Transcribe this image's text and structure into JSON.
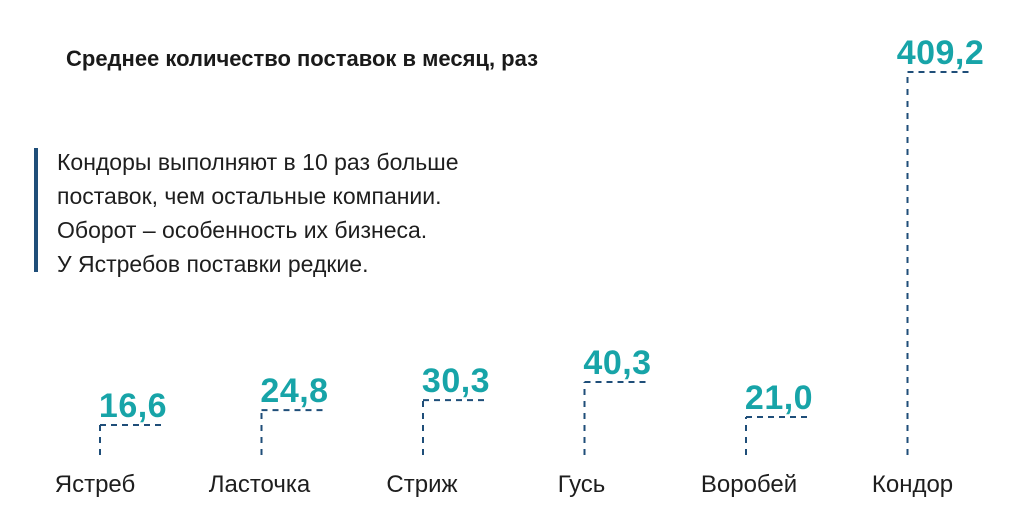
{
  "chart_data": {
    "type": "bar",
    "title": "Среднее количество поставок в месяц, раз",
    "categories": [
      "Ястреб",
      "Ласточка",
      "Стриж",
      "Гусь",
      "Воробей",
      "Кондор"
    ],
    "values": [
      16.6,
      24.8,
      30.3,
      40.3,
      21.0,
      409.2
    ],
    "value_labels": [
      "16,6",
      "24,8",
      "30,3",
      "40,3",
      "21,0",
      "409,2"
    ],
    "annotation": [
      "Кондоры выполняют в 10 раз больше",
      "поставок, чем остальные компании.",
      "Оборот – особенность их бизнеса.",
      "У Ястребов поставки редкие."
    ],
    "grid": false,
    "legend": "none",
    "colors": {
      "value": "#17a4a8",
      "marker": "#1f4e79",
      "accent_bar": "#1f4e79",
      "text": "#1e1e1e"
    }
  }
}
